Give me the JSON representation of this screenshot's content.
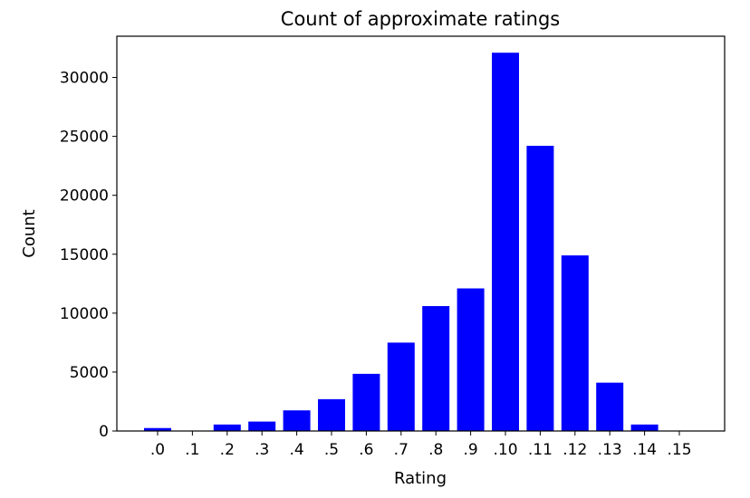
{
  "chart_data": {
    "type": "bar",
    "title": "Count of approximate ratings",
    "xlabel": "Rating",
    "ylabel": "Count",
    "categories": [
      ".0",
      ".1",
      ".2",
      ".3",
      ".4",
      ".5",
      ".6",
      ".7",
      ".8",
      ".9",
      ".10",
      ".11",
      ".12",
      ".13",
      ".14",
      ".15"
    ],
    "values": [
      250,
      30,
      550,
      800,
      1750,
      2700,
      4850,
      7500,
      10600,
      12100,
      32100,
      24200,
      14900,
      4100,
      550,
      20
    ],
    "ylim": [
      0,
      33500
    ],
    "yticks": [
      0,
      5000,
      10000,
      15000,
      20000,
      25000,
      30000
    ],
    "bar_color": "#0000ff",
    "grid": false
  }
}
